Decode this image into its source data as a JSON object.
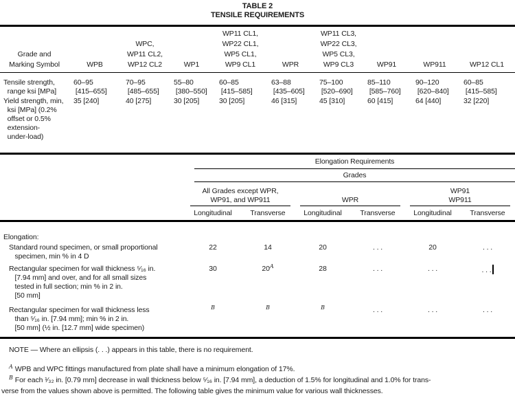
{
  "title": {
    "line1": "TABLE 2",
    "line2": "TENSILE REQUIREMENTS"
  },
  "top_table": {
    "row_label_header": "Grade and\nMarking Symbol",
    "columns": [
      "WPB",
      "WPC,\nWP11 CL2,\nWP12 CL2",
      "WP1",
      "WP11 CL1,\nWP22 CL1,\nWP5 CL1,\nWP9 CL1",
      "WPR",
      "WP11 CL3,\nWP22 CL3,\nWP5 CL3,\nWP9 CL3",
      "WP91",
      "WP911",
      "WP12 CL1"
    ],
    "rows": [
      {
        "label": "Tensile strength,\n  range ksi [MPa]",
        "values": [
          "60–95\n [415–655]",
          "70–95\n [485–655]",
          "55–80\n [380–550]",
          "60–85\n [415–585]",
          "63–88\n [435–605]",
          "75–100\n [520–690]",
          "85–110\n [585–760]",
          "90–120\n [620–840]",
          "60–85\n [415–585]"
        ]
      },
      {
        "label": "Yield strength, min,\n  ksi [MPa] (0.2%\n  offset or 0.5%\n  extension-\n  under-load)",
        "values": [
          "35 [240]",
          "40 [275]",
          "30 [205]",
          "30 [205]",
          "46 [315]",
          "45 [310]",
          "60 [415]",
          "64 [440]",
          "32 [220]"
        ]
      }
    ]
  },
  "elongation_header": {
    "title": "Elongation Requirements",
    "subtitle": "Grades",
    "groups": [
      {
        "label": "All Grades except WPR,\nWP91, and WP911"
      },
      {
        "label": "WPR"
      },
      {
        "label": "WP91\nWP911"
      }
    ],
    "direction_labels": [
      "Longitudinal",
      "Transverse",
      "Longitudinal",
      "Transverse",
      "Longitudinal",
      "Transverse"
    ]
  },
  "elongation_table": {
    "section_label": "Elongation:",
    "rows": [
      {
        "label": "Standard round specimen, or small proportional\n   specimen, min % in 4 D",
        "values": [
          {
            "v": "22"
          },
          {
            "v": "14"
          },
          {
            "v": "20"
          },
          {
            "v": ". . ."
          },
          {
            "v": "20"
          },
          {
            "v": ". . ."
          }
        ]
      },
      {
        "label": "Rectangular specimen for wall thickness ⁵⁄₁₆ in.\n   [7.94 mm] and over, and for all small sizes\n   tested in full section; min % in 2 in.\n   [50 mm]",
        "values": [
          {
            "v": "30"
          },
          {
            "v": "20",
            "sup": "A"
          },
          {
            "v": "28"
          },
          {
            "v": ". . ."
          },
          {
            "v": ". . ."
          },
          {
            "v": ". . ."
          }
        ]
      },
      {
        "label": "Rectangular specimen for wall thickness less\n   than ⁵⁄₁₆ in. [7.94 mm]; min % in 2 in.\n   [50 mm] (½ in. [12.7 mm] wide specimen)",
        "values": [
          {
            "sup": "B"
          },
          {
            "sup": "B"
          },
          {
            "sup": "B"
          },
          {
            "v": ". . ."
          },
          {
            "v": ". . ."
          },
          {
            "v": ". . ."
          }
        ]
      }
    ]
  },
  "note": "NOTE — Where an ellipsis (. . .) appears in this table, there is no requirement.",
  "footnotes": [
    {
      "marker": "A",
      "text": "WPB and WPC fittings manufactured from plate shall have a minimum elongation of 17%."
    },
    {
      "marker": "B",
      "text": "For each ¹⁄₃₂ in. [0.79 mm] decrease in wall thickness below ⁵⁄₁₆ in. [7.94 mm], a deduction of 1.5% for longitudinal and 1.0% for trans-\nverse from the values shown above is permitted. The following table gives the minimum value for various wall thicknesses."
    }
  ]
}
